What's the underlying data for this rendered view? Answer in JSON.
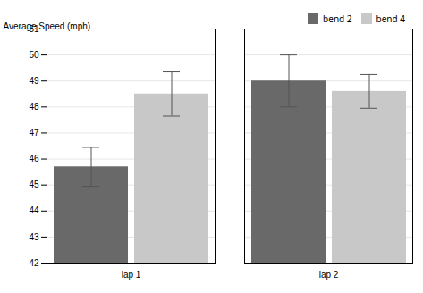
{
  "chart_data": {
    "type": "bar",
    "categories": [
      "lap 1",
      "lap 2"
    ],
    "series": [
      {
        "name": "bend 2",
        "color": "#696969",
        "values": [
          45.7,
          49.0
        ],
        "errors": [
          0.75,
          1.0
        ]
      },
      {
        "name": "bend 4",
        "color": "#c8c8c8",
        "values": [
          48.5,
          48.6
        ],
        "errors": [
          0.85,
          0.65
        ]
      }
    ],
    "ylabel": "Average Speed (mph)",
    "ylim": [
      42,
      51
    ],
    "yticks": [
      42,
      43,
      44,
      45,
      46,
      47,
      48,
      49,
      50,
      51
    ],
    "grid": true,
    "legend": "upper right"
  }
}
